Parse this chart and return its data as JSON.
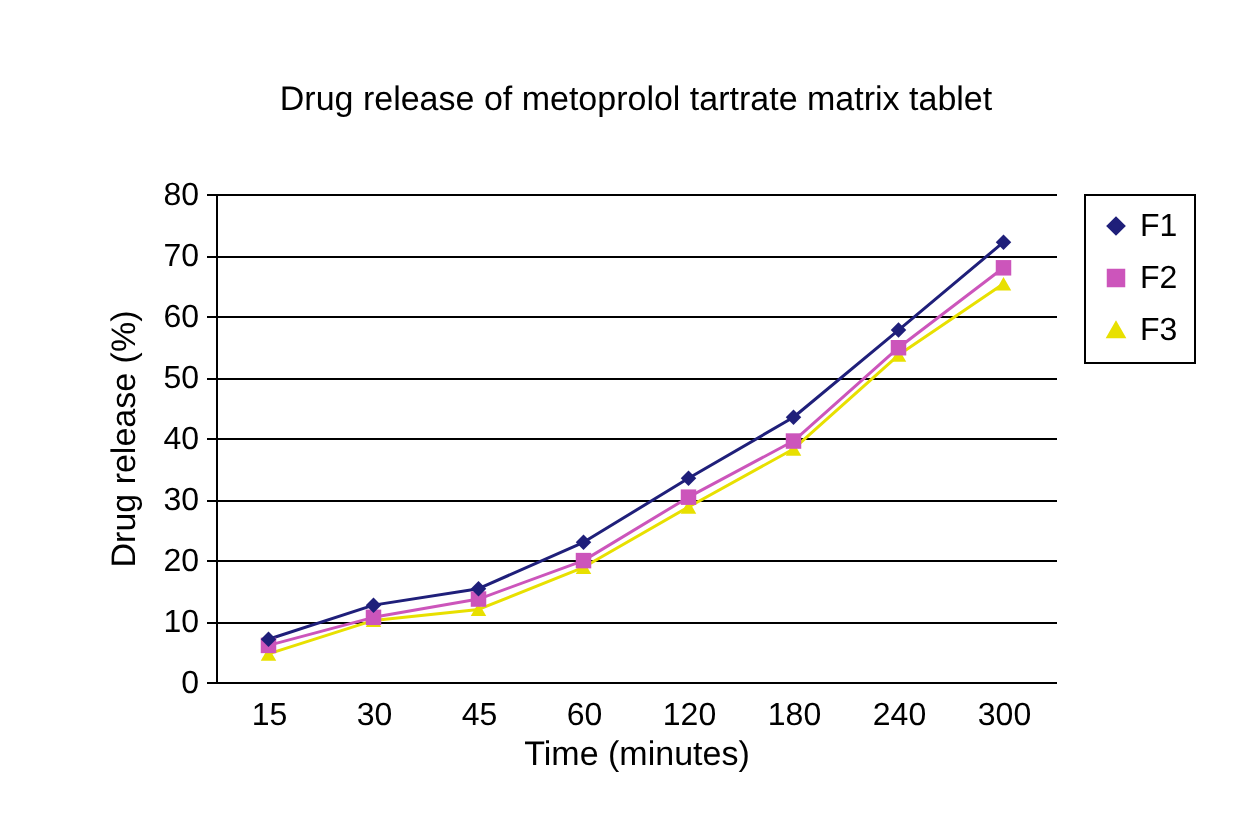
{
  "chart_data": {
    "type": "line",
    "title": "Drug release of metoprolol tartrate matrix tablet",
    "xlabel": "Time (minutes)",
    "ylabel": "Drug release (%)",
    "categories": [
      "15",
      "30",
      "45",
      "60",
      "120",
      "180",
      "240",
      "300"
    ],
    "series": [
      {
        "name": "F1",
        "color": "#1f1f7a",
        "marker": "diamond",
        "values": [
          7.0,
          12.6,
          15.3,
          22.9,
          33.4,
          43.4,
          57.7,
          72.1
        ]
      },
      {
        "name": "F2",
        "color": "#cc55bb",
        "marker": "square",
        "values": [
          6.0,
          10.6,
          13.6,
          19.9,
          30.3,
          39.5,
          54.8,
          67.9
        ]
      },
      {
        "name": "F3",
        "color": "#e8e000",
        "marker": "triangle",
        "values": [
          4.6,
          10.1,
          11.9,
          18.8,
          28.7,
          38.2,
          53.6,
          65.3
        ]
      }
    ],
    "ylim": [
      0,
      80
    ],
    "yticks": [
      0,
      10,
      20,
      30,
      40,
      50,
      60,
      70,
      80
    ],
    "grid": "y",
    "legend": "right"
  }
}
